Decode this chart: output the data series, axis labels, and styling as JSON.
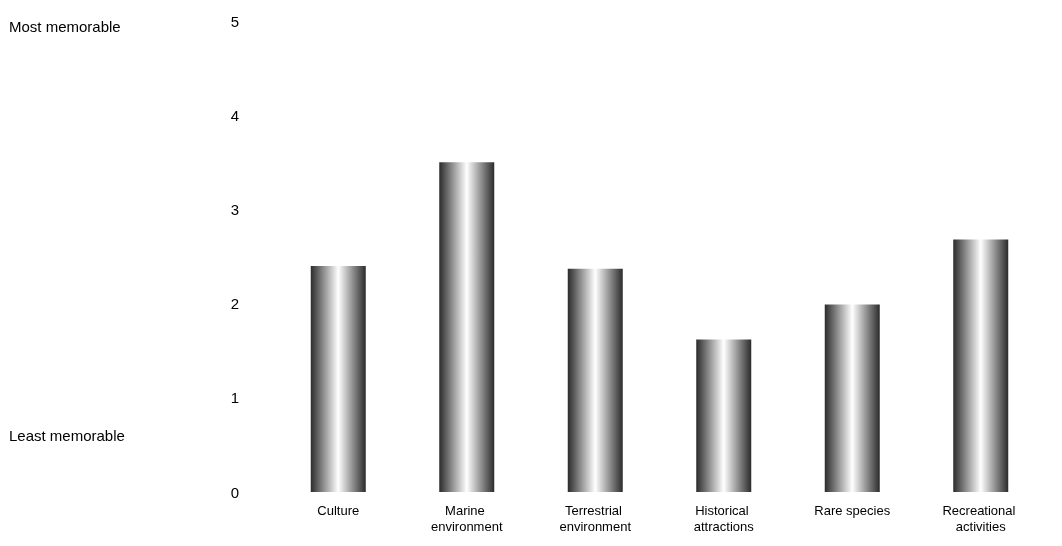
{
  "chart_data": {
    "type": "bar",
    "categories": [
      "Culture",
      "Marine environment",
      "Terrestrial environment",
      "Historical attractions",
      "Rare species",
      "Recreational activities"
    ],
    "values": [
      2.4,
      3.5,
      2.37,
      1.62,
      1.99,
      2.68
    ],
    "color": "#2b2b2b",
    "ylim": [
      0,
      5
    ],
    "yticks": [
      0,
      1,
      2,
      3,
      4,
      5
    ],
    "grid": false,
    "annotations": [
      "Most memorable",
      "Least memorable"
    ]
  }
}
